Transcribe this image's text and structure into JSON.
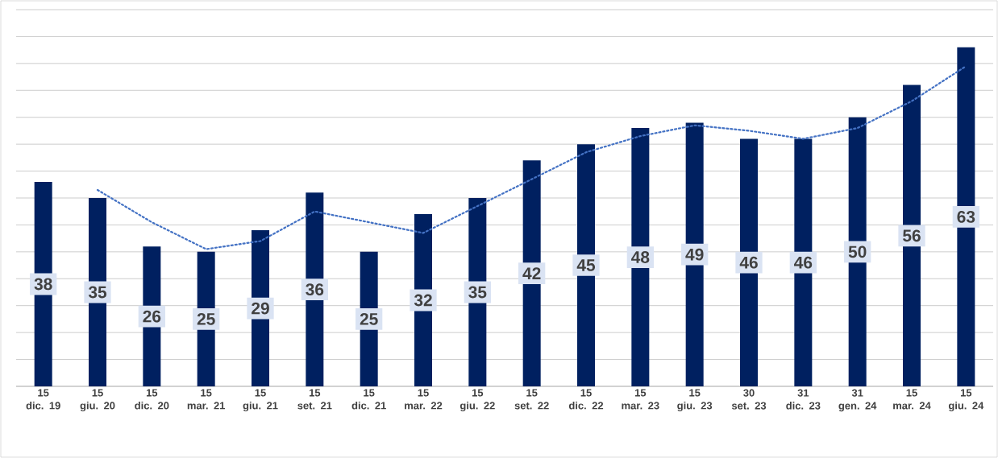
{
  "chart_data": {
    "type": "bar",
    "categories": [
      "15 dic. 19",
      "15 giu. 20",
      "15 dic. 20",
      "15 mar. 21",
      "15 giu. 21",
      "15 set. 21",
      "15 dic. 21",
      "15 mar. 22",
      "15 giu. 22",
      "15 set. 22",
      "15 dic. 22",
      "15 mar. 23",
      "15 giu. 23",
      "30 set. 23",
      "31 dic. 23",
      "31 gen. 24",
      "15 mar. 24",
      "15 giu. 24"
    ],
    "ylim": [
      0,
      70
    ],
    "tick_labels": "x",
    "grid": "y",
    "series": [
      {
        "color": "#002060",
        "values": [
          38,
          35,
          26,
          25,
          29,
          36,
          25,
          32,
          35,
          42,
          45,
          48,
          49,
          46,
          46,
          50,
          56,
          63
        ],
        "value_labels": [
          "38",
          "35",
          "26",
          "25",
          "29",
          "36",
          "25",
          "32",
          "35",
          "42",
          "45",
          "48",
          "49",
          "46",
          "46",
          "50",
          "56",
          "63"
        ]
      },
      {
        "type": "line",
        "color": "#4472c4",
        "line_style": "dotted",
        "marker": "none",
        "values": [
          null,
          36.5,
          30.5,
          25.5,
          27,
          32.5,
          30.5,
          28.5,
          33.5,
          38.5,
          43.5,
          46.5,
          48.5,
          47.5,
          46,
          48,
          53,
          59.5
        ]
      }
    ]
  }
}
